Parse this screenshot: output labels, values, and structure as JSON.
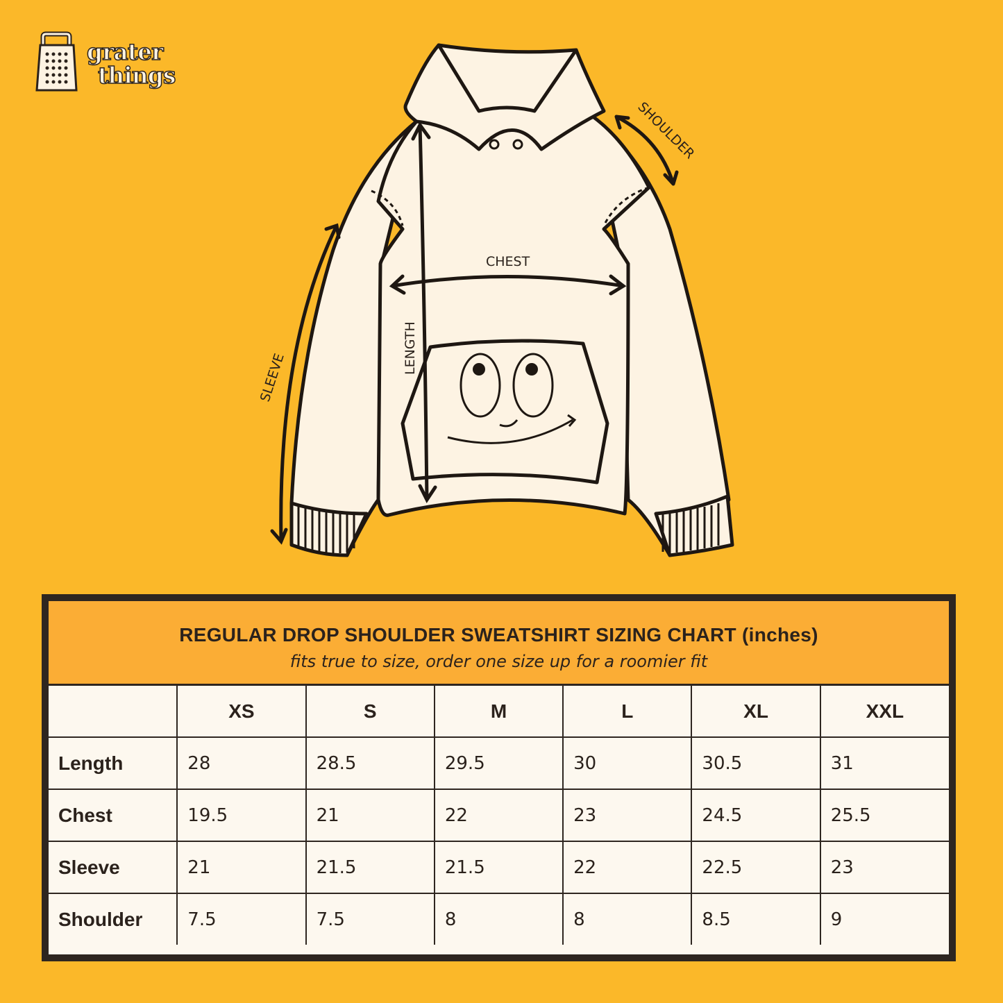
{
  "brand": {
    "line1": "grater",
    "line2": "things",
    "logo_icon": "cheese-grater-icon"
  },
  "diagram": {
    "labels": {
      "chest": "CHEST",
      "length": "LENGTH",
      "sleeve": "SLEEVE",
      "shoulder": "SHOULDER"
    }
  },
  "colors": {
    "background": "#fbb829",
    "header": "#fbad35",
    "garment": "#fdf3e3",
    "ink": "#2b221c"
  },
  "table": {
    "title": "REGULAR DROP SHOULDER SWEATSHIRT SIZING CHART (inches)",
    "subtitle": "fits true to size, order one size up for a roomier fit",
    "sizes": [
      "XS",
      "S",
      "M",
      "L",
      "XL",
      "XXL"
    ],
    "rows": [
      {
        "label": "Length",
        "values": [
          "28",
          "28.5",
          "29.5",
          "30",
          "30.5",
          "31"
        ]
      },
      {
        "label": "Chest",
        "values": [
          "19.5",
          "21",
          "22",
          "23",
          "24.5",
          "25.5"
        ]
      },
      {
        "label": "Sleeve",
        "values": [
          "21",
          "21.5",
          "21.5",
          "22",
          "22.5",
          "23"
        ]
      },
      {
        "label": "Shoulder",
        "values": [
          "7.5",
          "7.5",
          "8",
          "8",
          "8.5",
          "9"
        ]
      }
    ]
  }
}
